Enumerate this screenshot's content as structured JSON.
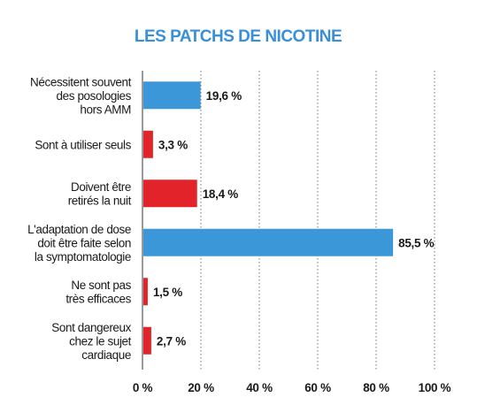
{
  "chart_data": {
    "type": "bar",
    "orientation": "horizontal",
    "title": "LES PATCHS DE NICOTINE",
    "categories": [
      [
        "Nécessitent souvent",
        "des posologies",
        "hors AMM"
      ],
      [
        "Sont à utiliser seuls"
      ],
      [
        "Doivent être",
        "retirés la nuit"
      ],
      [
        "L'adaptation de dose",
        "doit être faite selon",
        "la symptomatologie"
      ],
      [
        "Ne sont pas",
        "très efficaces"
      ],
      [
        "Sont dangereux",
        "chez le sujet",
        "cardiaque"
      ]
    ],
    "values": [
      19.6,
      3.3,
      18.4,
      85.5,
      1.5,
      2.7
    ],
    "value_labels": [
      "19,6 %",
      "3,3 %",
      "18,4 %",
      "85,5 %",
      "1,5 %",
      "2,7 %"
    ],
    "bar_colors": [
      "#3b97d7",
      "#e2232a",
      "#e2232a",
      "#3b97d7",
      "#e2232a",
      "#e2232a"
    ],
    "xlim": [
      0,
      100
    ],
    "xticks": [
      0,
      20,
      40,
      60,
      80,
      100
    ],
    "xtick_labels": [
      "0 %",
      "20 %",
      "40 %",
      "60 %",
      "80 %",
      "100 %"
    ],
    "grid": true,
    "xlabel": "",
    "ylabel": ""
  }
}
